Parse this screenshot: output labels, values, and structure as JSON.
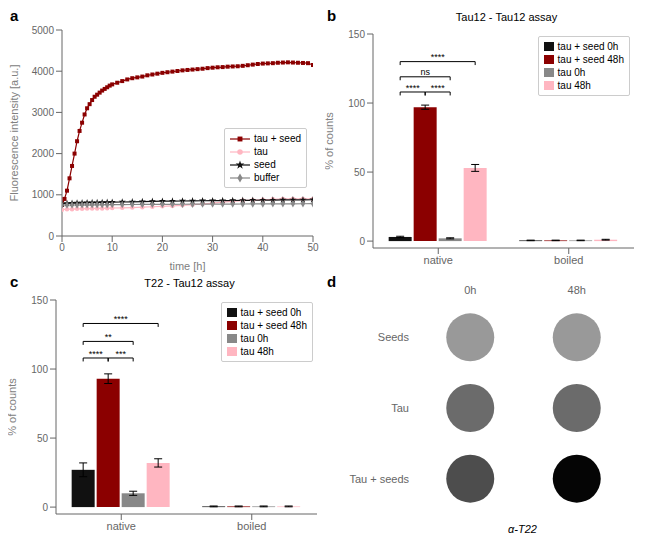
{
  "chart_data": [
    {
      "type": "line",
      "xlabel": "time [h]",
      "ylabel": "Fluorescence intensity [a.u.]",
      "xlim": [
        0,
        50
      ],
      "ylim": [
        0,
        5000
      ],
      "xticks": [
        0,
        10,
        20,
        30,
        40,
        50
      ],
      "yticks": [
        0,
        1000,
        2000,
        3000,
        4000,
        5000
      ],
      "grid": false,
      "legend": "lower right",
      "annotations": [
        {
          "text": "a"
        }
      ],
      "series": [
        {
          "name": "tau + seed",
          "color": "#8B0000",
          "marker": "square",
          "x": [
            0,
            0.5,
            1,
            1.5,
            2,
            2.5,
            3,
            3.5,
            4,
            4.5,
            5,
            5.5,
            6,
            6.5,
            7,
            7.5,
            8,
            8.5,
            9,
            9.5,
            10,
            11,
            12,
            13,
            14,
            15,
            16,
            17,
            18,
            19,
            20,
            21,
            22,
            23,
            24,
            25,
            26,
            27,
            28,
            29,
            30,
            31,
            32,
            33,
            34,
            35,
            36,
            37,
            38,
            39,
            40,
            41,
            42,
            43,
            44,
            45,
            46,
            47,
            48,
            49,
            50
          ],
          "values": [
            750,
            900,
            1100,
            1400,
            1700,
            2000,
            2300,
            2550,
            2750,
            2950,
            3100,
            3200,
            3300,
            3380,
            3430,
            3480,
            3530,
            3570,
            3610,
            3650,
            3680,
            3720,
            3760,
            3800,
            3830,
            3850,
            3870,
            3900,
            3920,
            3940,
            3960,
            3975,
            3990,
            4005,
            4020,
            4030,
            4040,
            4050,
            4060,
            4075,
            4085,
            4095,
            4100,
            4110,
            4115,
            4120,
            4130,
            4145,
            4160,
            4175,
            4185,
            4190,
            4195,
            4205,
            4210,
            4215,
            4210,
            4205,
            4200,
            4195,
            4150
          ]
        },
        {
          "name": "tau",
          "color": "#FFB6C1",
          "marker": "circle",
          "x": [
            0,
            1,
            2,
            3,
            4,
            5,
            6,
            7,
            8,
            9,
            10,
            12,
            14,
            16,
            18,
            20,
            22,
            24,
            26,
            28,
            30,
            32,
            34,
            36,
            38,
            40,
            42,
            44,
            46,
            48,
            50
          ],
          "values": [
            640,
            650,
            650,
            660,
            660,
            665,
            665,
            670,
            670,
            675,
            680,
            685,
            690,
            700,
            710,
            720,
            730,
            745,
            760,
            775,
            800,
            820,
            840,
            860,
            870,
            880,
            890,
            900,
            900,
            900,
            900
          ]
        },
        {
          "name": "seed",
          "color": "#111111",
          "marker": "star",
          "x": [
            0,
            1,
            2,
            3,
            4,
            5,
            6,
            7,
            8,
            9,
            10,
            12,
            14,
            16,
            18,
            20,
            22,
            24,
            26,
            28,
            30,
            32,
            34,
            36,
            38,
            40,
            42,
            44,
            46,
            48,
            50
          ],
          "values": [
            780,
            790,
            795,
            800,
            805,
            808,
            810,
            812,
            815,
            818,
            820,
            825,
            830,
            835,
            840,
            845,
            848,
            850,
            852,
            855,
            857,
            860,
            862,
            865,
            867,
            870,
            872,
            875,
            877,
            878,
            880
          ]
        },
        {
          "name": "buffer",
          "color": "#888888",
          "marker": "diamond",
          "x": [
            0,
            1,
            2,
            3,
            4,
            5,
            6,
            7,
            8,
            9,
            10,
            12,
            14,
            16,
            18,
            20,
            22,
            24,
            26,
            28,
            30,
            32,
            34,
            36,
            38,
            40,
            42,
            44,
            46,
            48,
            50
          ],
          "values": [
            750,
            752,
            753,
            754,
            755,
            756,
            757,
            758,
            759,
            760,
            762,
            763,
            765,
            766,
            768,
            769,
            770,
            771,
            772,
            773,
            774,
            775,
            776,
            777,
            778,
            779,
            780,
            781,
            782,
            783,
            784
          ]
        }
      ]
    },
    {
      "type": "bar",
      "title": "Tau12 - Tau12 assay",
      "ylabel": "% of counts",
      "categories": [
        "native",
        "boiled"
      ],
      "ylim": [
        -5,
        150
      ],
      "yticks": [
        0,
        50,
        100,
        150
      ],
      "grid": false,
      "legend": "upper right",
      "series": [
        {
          "name": "tau + seed 0h",
          "color": "#111111",
          "values": [
            3.0,
            0.5
          ],
          "errors": [
            0.5,
            0.2
          ]
        },
        {
          "name": "tau + seed 48h",
          "color": "#8B0000",
          "values": [
            97.0,
            0.5
          ],
          "errors": [
            1.5,
            0.2
          ]
        },
        {
          "name": "tau 0h",
          "color": "#888888",
          "values": [
            2.0,
            0.5
          ],
          "errors": [
            0.4,
            0.2
          ]
        },
        {
          "name": "tau 48h",
          "color": "#FFB6C1",
          "values": [
            53.0,
            1.0
          ],
          "errors": [
            2.5,
            0.3
          ]
        }
      ],
      "annotations": [
        {
          "text": "b"
        },
        {
          "text": "****",
          "from": "tau + seed 0h",
          "to": "tau + seed 48h",
          "category": "native",
          "y": 108
        },
        {
          "text": "****",
          "from": "tau + seed 48h",
          "to": "tau 0h",
          "category": "native",
          "y": 108
        },
        {
          "text": "ns",
          "from": "tau + seed 0h",
          "to": "tau 0h",
          "category": "native",
          "y": 119
        },
        {
          "text": "****",
          "from": "tau + seed 0h",
          "to": "tau 48h",
          "category": "native",
          "y": 130
        }
      ]
    },
    {
      "type": "bar",
      "title": "T22 - Tau12 assay",
      "ylabel": "% of counts",
      "categories": [
        "native",
        "boiled"
      ],
      "ylim": [
        -5,
        150
      ],
      "yticks": [
        0,
        50,
        100,
        150
      ],
      "grid": false,
      "legend": "upper right",
      "series": [
        {
          "name": "tau + seed 0h",
          "color": "#111111",
          "values": [
            27.0,
            0.5
          ],
          "errors": [
            5.0,
            0.3
          ]
        },
        {
          "name": "tau + seed 48h",
          "color": "#8B0000",
          "values": [
            93.0,
            0.5
          ],
          "errors": [
            3.5,
            0.3
          ]
        },
        {
          "name": "tau 0h",
          "color": "#888888",
          "values": [
            10.0,
            0.5
          ],
          "errors": [
            1.5,
            0.3
          ]
        },
        {
          "name": "tau 48h",
          "color": "#FFB6C1",
          "values": [
            32.0,
            0.5
          ],
          "errors": [
            3.0,
            0.3
          ]
        }
      ],
      "annotations": [
        {
          "text": "c"
        },
        {
          "text": "****",
          "from": "tau + seed 0h",
          "to": "tau + seed 48h",
          "category": "native",
          "y": 108
        },
        {
          "text": "***",
          "from": "tau + seed 48h",
          "to": "tau 0h",
          "category": "native",
          "y": 108
        },
        {
          "text": "**",
          "from": "tau + seed 0h",
          "to": "tau 0h",
          "category": "native",
          "y": 120
        },
        {
          "text": "****",
          "from": "tau + seed 0h",
          "to": "tau 48h",
          "category": "native",
          "y": 133
        }
      ]
    },
    {
      "type": "dots",
      "categories": [
        "0h",
        "48h"
      ],
      "xlabel": "α-T22",
      "annotations": [
        {
          "text": "d"
        }
      ],
      "series": [
        {
          "name": "Seeds",
          "colors": [
            "#999999",
            "#999999"
          ]
        },
        {
          "name": "Tau",
          "colors": [
            "#6b6b6b",
            "#6b6b6b"
          ]
        },
        {
          "name": "Tau + seeds",
          "colors": [
            "#4d4d4d",
            "#050505"
          ]
        }
      ]
    }
  ]
}
